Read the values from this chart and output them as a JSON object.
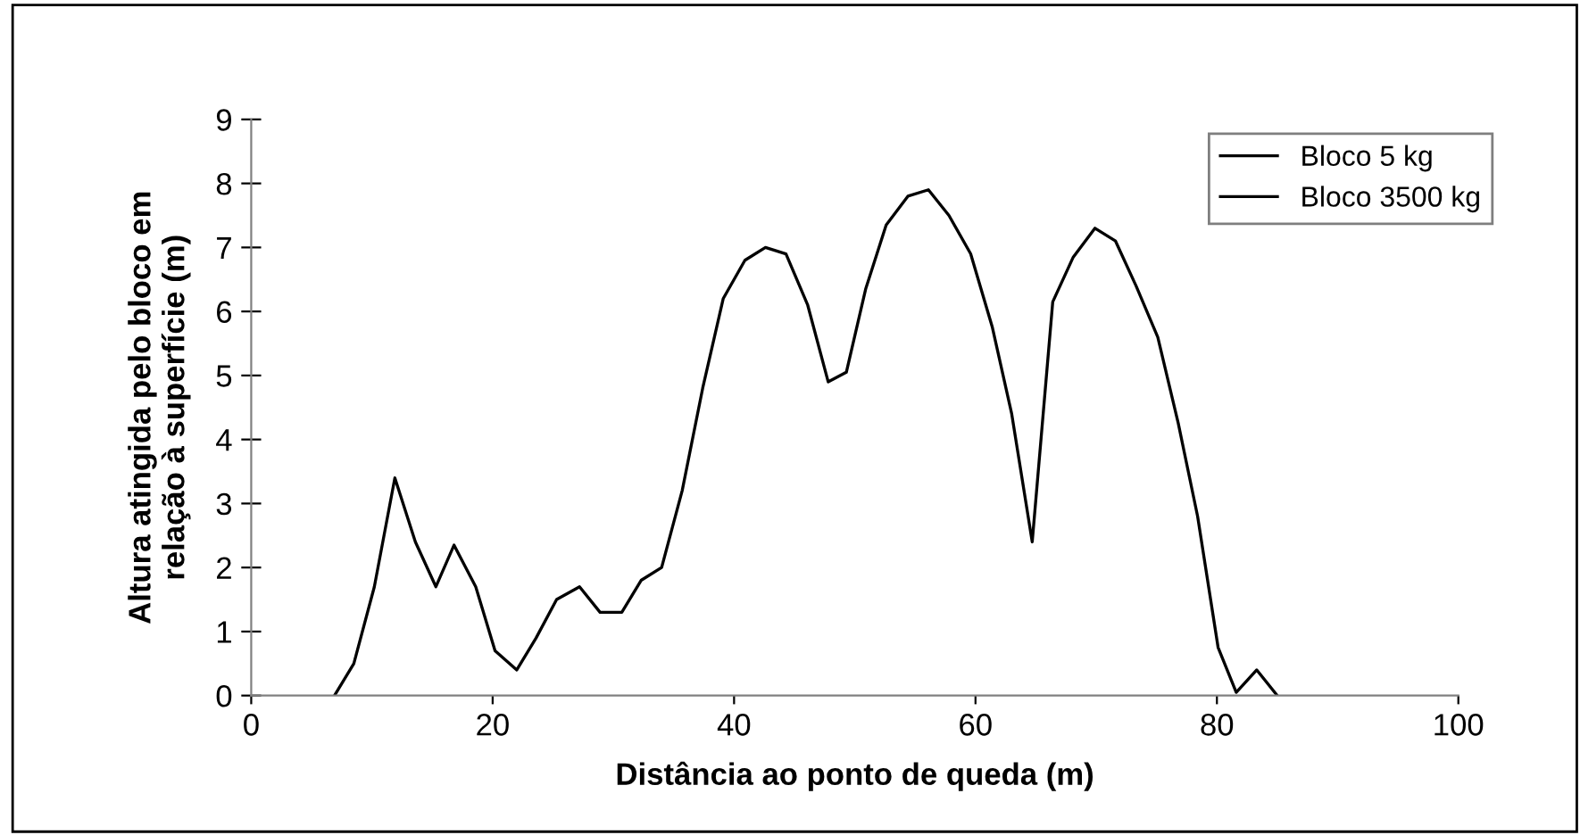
{
  "chart_data": {
    "type": "line",
    "xlabel": "Distância ao ponto de queda (m)",
    "ylabel": "Altura atingida pelo bloco em\nrelação à superfície (m)",
    "xlim": [
      0,
      100
    ],
    "xticks": [
      0,
      20,
      40,
      60,
      80,
      100
    ],
    "ylim": [
      0,
      9
    ],
    "yticks": [
      0,
      1,
      2,
      3,
      4,
      5,
      6,
      7,
      8,
      9
    ],
    "x": [
      6.9,
      8.5,
      10.2,
      11.9,
      13.6,
      15.3,
      16.8,
      18.6,
      20.2,
      22.0,
      23.6,
      25.3,
      27.2,
      28.9,
      30.7,
      32.3,
      34.0,
      35.7,
      37.4,
      39.1,
      40.9,
      42.6,
      44.3,
      46.1,
      47.8,
      49.3,
      50.9,
      52.6,
      54.4,
      56.1,
      57.8,
      59.6,
      61.4,
      63.0,
      64.7,
      66.4,
      68.1,
      69.9,
      71.6,
      73.3,
      75.1,
      76.8,
      78.4,
      80.1,
      81.6,
      83.3,
      85.0
    ],
    "series": [
      {
        "name": "Bloco 5 kg",
        "color": "#000000",
        "values": [
          0,
          0.5,
          1.7,
          3.4,
          2.4,
          1.7,
          2.35,
          1.7,
          0.7,
          0.4,
          0.9,
          1.5,
          1.7,
          1.3,
          1.3,
          1.8,
          2.0,
          3.2,
          4.8,
          6.2,
          6.8,
          7.0,
          6.9,
          6.1,
          4.9,
          5.05,
          6.35,
          7.35,
          7.8,
          7.9,
          7.5,
          6.9,
          5.75,
          4.4,
          2.4,
          6.15,
          6.85,
          7.3,
          7.1,
          6.4,
          5.6,
          4.25,
          2.8,
          0.75,
          0.05,
          0.4,
          0
        ]
      },
      {
        "name": "Bloco 3500 kg",
        "color": "#000000",
        "values": [
          null,
          null,
          null,
          null,
          null,
          null,
          null,
          null,
          null,
          null,
          null,
          null,
          null,
          null,
          null,
          null,
          null,
          null,
          null,
          null,
          null,
          null,
          null,
          null,
          null,
          null,
          null,
          null,
          null,
          null,
          null,
          null,
          null,
          null,
          null,
          null,
          null,
          null,
          null,
          null,
          null,
          null,
          null,
          null,
          null,
          null,
          null
        ]
      }
    ],
    "legend": "upper right",
    "grid": false,
    "marker": "none",
    "line_style": "solid"
  }
}
